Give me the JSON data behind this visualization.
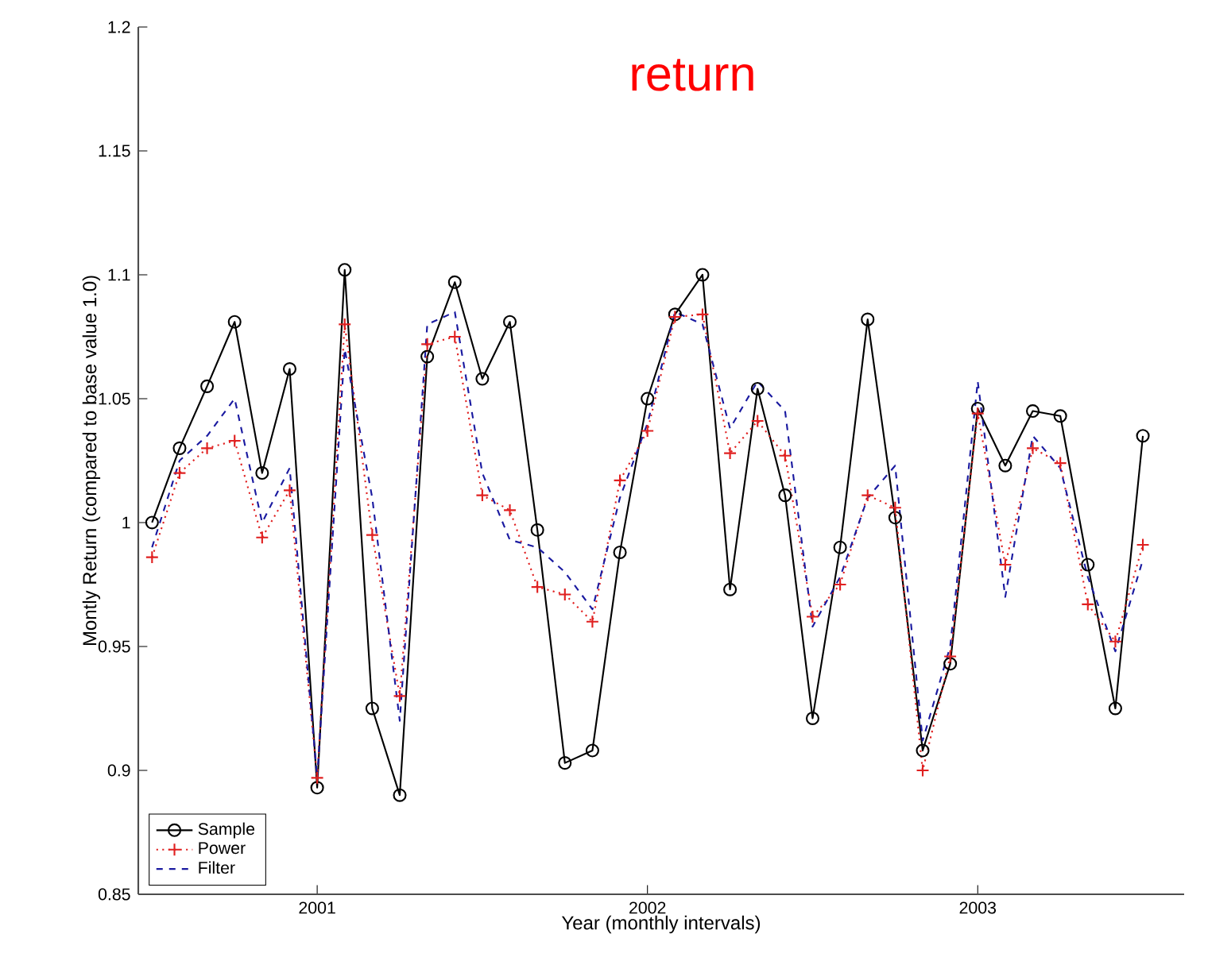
{
  "chart_data": {
    "type": "line",
    "title": "return",
    "xlabel": "Year (monthly intervals)",
    "ylabel": "Montly Return (compared to base value 1.0)",
    "x": [
      "2000-07",
      "2000-08",
      "2000-09",
      "2000-10",
      "2000-11",
      "2000-12",
      "2001-01",
      "2001-02",
      "2001-03",
      "2001-04",
      "2001-05",
      "2001-06",
      "2001-07",
      "2001-08",
      "2001-09",
      "2001-10",
      "2001-11",
      "2001-12",
      "2002-01",
      "2002-02",
      "2002-03",
      "2002-04",
      "2002-05",
      "2002-06",
      "2002-07",
      "2002-08",
      "2002-09",
      "2002-10",
      "2002-11",
      "2002-12",
      "2003-01",
      "2003-02",
      "2003-03",
      "2003-04",
      "2003-05",
      "2003-06",
      "2003-07"
    ],
    "xlim": [
      "2000-06-16",
      "2003-08-16"
    ],
    "xticks": [
      "2001",
      "2002",
      "2003"
    ],
    "ylim": [
      0.85,
      1.2
    ],
    "yticks": [
      0.85,
      0.9,
      0.95,
      1,
      1.05,
      1.1,
      1.15,
      1.2
    ],
    "legend": "bottom left",
    "series": [
      {
        "name": "Sample",
        "color": "#000000",
        "marker": "circle",
        "line_style": "solid",
        "values": [
          1.0,
          1.03,
          1.055,
          1.081,
          1.02,
          1.062,
          0.893,
          1.102,
          0.925,
          0.89,
          1.067,
          1.097,
          1.058,
          1.081,
          0.997,
          0.903,
          0.908,
          0.988,
          1.05,
          1.084,
          1.1,
          0.973,
          1.054,
          1.011,
          0.921,
          0.99,
          1.082,
          1.002,
          0.908,
          0.943,
          1.046,
          1.023,
          1.045,
          1.043,
          0.983,
          0.925,
          1.035
        ]
      },
      {
        "name": "Power",
        "color": "#e02020",
        "marker": "cross",
        "line_style": "dotted",
        "values": [
          0.986,
          1.02,
          1.03,
          1.033,
          0.994,
          1.013,
          0.897,
          1.08,
          0.995,
          0.93,
          1.072,
          1.075,
          1.011,
          1.005,
          0.974,
          0.971,
          0.96,
          1.017,
          1.037,
          1.083,
          1.084,
          1.028,
          1.041,
          1.027,
          0.962,
          0.975,
          1.011,
          1.006,
          0.9,
          0.946,
          1.044,
          0.983,
          1.03,
          1.024,
          0.967,
          0.952,
          0.991
        ]
      },
      {
        "name": "Filter",
        "color": "#1a1aa0",
        "marker": "none",
        "line_style": "dashed",
        "values": [
          0.99,
          1.025,
          1.035,
          1.05,
          1.0,
          1.022,
          0.897,
          1.07,
          1.01,
          0.92,
          1.08,
          1.085,
          1.02,
          0.993,
          0.99,
          0.98,
          0.965,
          1.01,
          1.04,
          1.085,
          1.08,
          1.038,
          1.057,
          1.045,
          0.958,
          0.978,
          1.01,
          1.023,
          0.912,
          0.95,
          1.057,
          0.97,
          1.035,
          1.022,
          0.978,
          0.948,
          0.985
        ]
      }
    ]
  }
}
